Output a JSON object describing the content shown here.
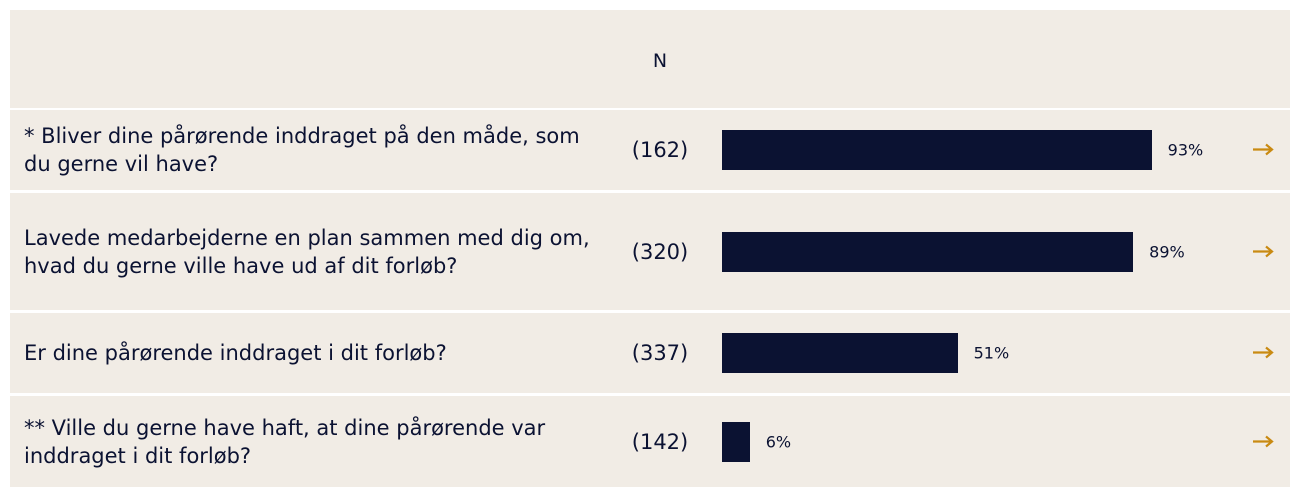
{
  "chart_data": {
    "type": "bar",
    "orientation": "horizontal",
    "column_header": "N",
    "categories": [
      "* Bliver dine pårørende inddraget på den måde, som du gerne vil have?",
      "Lavede medarbejderne en plan sammen med dig om, hvad du gerne ville have ud af dit forløb?",
      "Er dine pårørende inddraget i dit forløb?",
      "** Ville du gerne have haft, at dine pårørende var inddraget i dit forløb?"
    ],
    "n_labels": [
      "(162)",
      "(320)",
      "(337)",
      "(142)"
    ],
    "values": [
      93,
      89,
      51,
      6
    ],
    "value_labels": [
      "93%",
      "89%",
      "51%",
      "6%"
    ],
    "xlim": [
      0,
      100
    ],
    "color": "#0b1232"
  }
}
